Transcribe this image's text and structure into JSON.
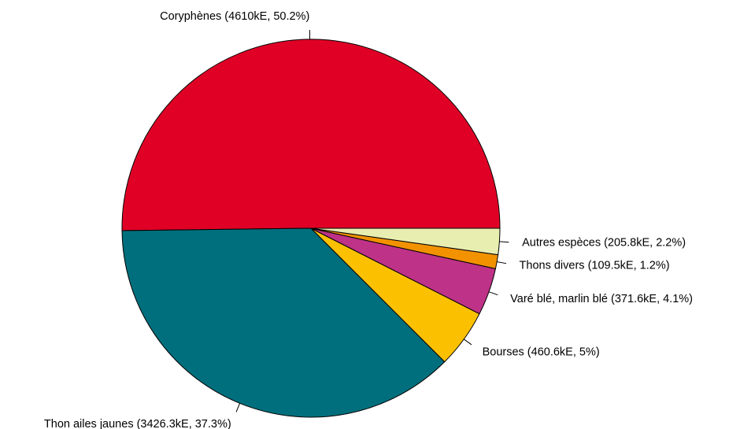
{
  "chart_data": {
    "type": "pie",
    "start_angle_deg": 0,
    "direction": "counterclockwise",
    "slices": [
      {
        "name": "Coryphènes",
        "value": 4610,
        "percent": 50.2,
        "color": "#e00026",
        "label": "Coryphènes (4610kE, 50.2%)"
      },
      {
        "name": "Thon ailes jaunes",
        "value": 3426.3,
        "percent": 37.3,
        "color": "#006f7d",
        "label": "Thon ailes jaunes (3426.3kE, 37.3%)"
      },
      {
        "name": "Bourses",
        "value": 460.6,
        "percent": 5,
        "color": "#fbc100",
        "label": "Bourses (460.6kE, 5%)"
      },
      {
        "name": "Varé blé, marlin blé",
        "value": 371.6,
        "percent": 4.1,
        "color": "#be3287",
        "label": "Varé blé, marlin blé (371.6kE, 4.1%)"
      },
      {
        "name": "Thons divers",
        "value": 109.5,
        "percent": 1.2,
        "color": "#f39200",
        "label": "Thons divers (109.5kE, 1.2%)"
      },
      {
        "name": "Autres espèces",
        "value": 205.8,
        "percent": 2.2,
        "color": "#e8eeb0",
        "label": "Autres espèces (205.8kE, 2.2%)"
      }
    ]
  }
}
